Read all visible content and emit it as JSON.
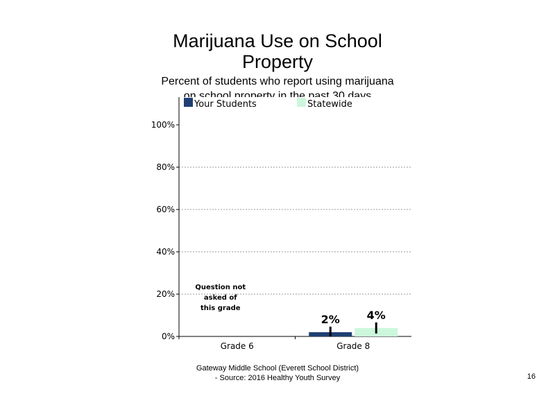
{
  "header": {
    "title_line1": "Marijuana Use on School",
    "title_line2": "Property",
    "subtitle_line1": "Percent of students who report using marijuana",
    "subtitle_line2": "on school property in the past 30 days"
  },
  "footer": {
    "line1": "Gateway Middle School (Everett School District)",
    "line2": "- Source: 2016 Healthy Youth Survey",
    "slide_number": "16"
  },
  "chart_data": {
    "type": "bar",
    "title": "Marijuana Use on School Property",
    "subtitle": "Percent of students who report using marijuana on school property in the past 30 days",
    "categories": [
      "Grade 6",
      "Grade 8"
    ],
    "series": [
      {
        "name": "Your Students",
        "values": [
          null,
          2
        ],
        "labels": [
          "",
          "2%"
        ],
        "color": "#1f3f73"
      },
      {
        "name": "Statewide",
        "values": [
          null,
          4
        ],
        "labels": [
          "",
          "4%"
        ],
        "color": "#ccf7dc"
      }
    ],
    "y_ticks": [
      "0%",
      "20%",
      "40%",
      "60%",
      "80%",
      "100%"
    ],
    "ylim": [
      0,
      100
    ],
    "grid": true,
    "legend": "top",
    "annotations": [
      {
        "category": "Grade 6",
        "lines": [
          "Question not",
          "asked of",
          "this grade"
        ]
      }
    ]
  }
}
